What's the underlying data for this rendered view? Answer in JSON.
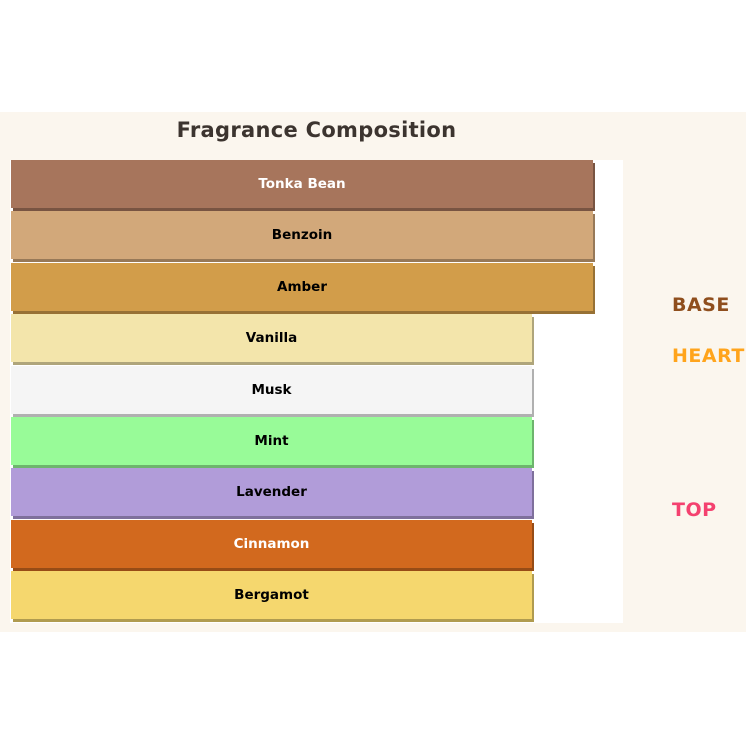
{
  "page": {
    "background": "#FFFFFF",
    "figure_background": "#FBF6EE",
    "plot_background": "#FFFFFF"
  },
  "chart_data": {
    "type": "bar",
    "orientation": "horizontal",
    "title": "Fragrance Composition",
    "title_color": "#3C342F",
    "xlabel": "",
    "ylabel": "",
    "grid": false,
    "xlim": [
      0,
      100
    ],
    "legend_position": "right",
    "bars": [
      {
        "label": "Tonka Bean",
        "value": 95,
        "color": "#A7755C",
        "label_color": "#FFFFFF",
        "group": "BASE"
      },
      {
        "label": "Benzoin",
        "value": 95,
        "color": "#D2A87A",
        "label_color": "#000000",
        "group": "BASE"
      },
      {
        "label": "Amber",
        "value": 95,
        "color": "#D29D4A",
        "label_color": "#000000",
        "group": "BASE"
      },
      {
        "label": "Vanilla",
        "value": 85,
        "color": "#F3E5AB",
        "label_color": "#000000",
        "group": "HEART"
      },
      {
        "label": "Musk",
        "value": 85,
        "color": "#F5F5F5",
        "label_color": "#000000",
        "group": "HEART"
      },
      {
        "label": "Mint",
        "value": 85,
        "color": "#98FB98",
        "label_color": "#000000",
        "group": "HEART"
      },
      {
        "label": "Lavender",
        "value": 85,
        "color": "#B19CD9",
        "label_color": "#000000",
        "group": "TOP"
      },
      {
        "label": "Cinnamon",
        "value": 85,
        "color": "#D2691E",
        "label_color": "#FFFFFF",
        "group": "TOP"
      },
      {
        "label": "Bergamot",
        "value": 85,
        "color": "#F5D76E",
        "label_color": "#000000",
        "group": "TOP"
      }
    ],
    "group_labels": [
      {
        "text": "BASE",
        "color": "#8F4E1D"
      },
      {
        "text": "HEART",
        "color": "#FFA41C"
      },
      {
        "text": "TOP",
        "color": "#F4416F"
      }
    ]
  }
}
